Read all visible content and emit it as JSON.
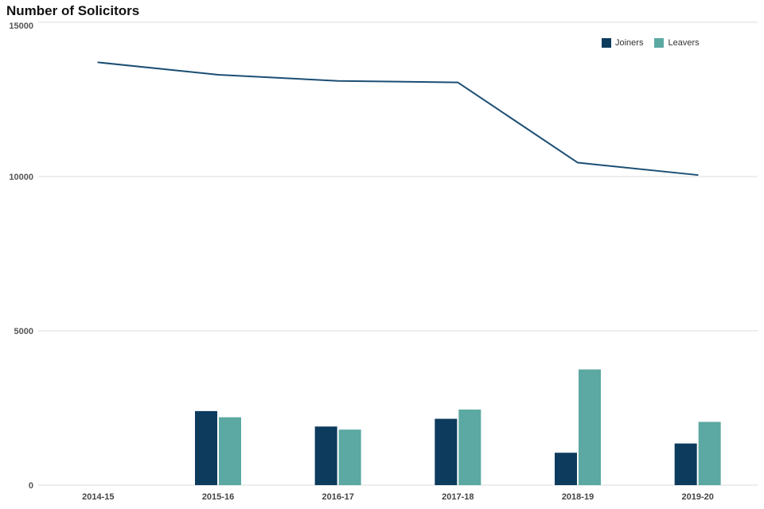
{
  "chart_data": {
    "type": "bar+line",
    "title": "Number of Solicitors",
    "categories": [
      "2014-15",
      "2015-16",
      "2016-17",
      "2017-18",
      "2018-19",
      "2019-20"
    ],
    "series": [
      {
        "name": "Joiners",
        "type": "bar",
        "color": "#0d3b5e",
        "values": [
          null,
          2400,
          1900,
          2150,
          1050,
          1350
        ]
      },
      {
        "name": "Leavers",
        "type": "bar",
        "color": "#5ca8a2",
        "values": [
          null,
          2200,
          1800,
          2450,
          3750,
          2050
        ]
      },
      {
        "name": "Solicitors",
        "type": "line",
        "color": "#1b4e73",
        "values": [
          13700,
          13300,
          13100,
          13050,
          10450,
          10050
        ]
      }
    ],
    "ylim": [
      0,
      15000
    ],
    "yticks": [
      0,
      5000,
      10000,
      15000
    ],
    "grid": true,
    "legend": [
      "Joiners",
      "Leavers"
    ],
    "legend_position": "top-right"
  }
}
